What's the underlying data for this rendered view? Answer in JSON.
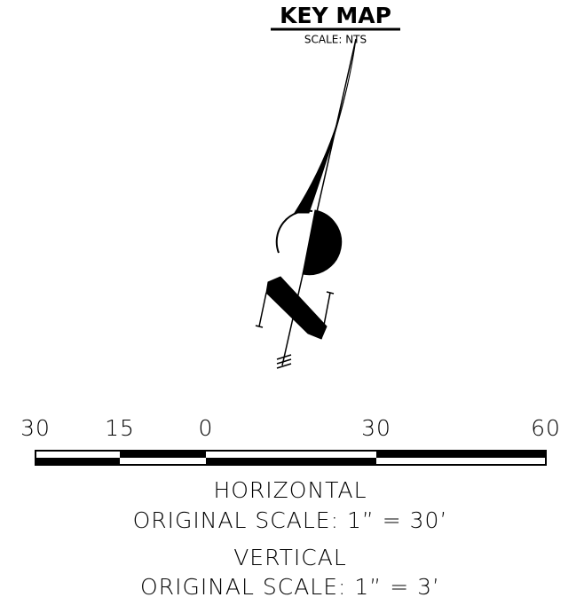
{
  "header": {
    "title": "KEY MAP",
    "subtitle": "SCALE: NTS"
  },
  "scale_bar": {
    "labels": [
      "30",
      "15",
      "0",
      "30",
      "60"
    ]
  },
  "notes": {
    "horizontal_title": "HORIZONTAL",
    "horizontal_scale": "ORIGINAL SCALE: 1” = 30’",
    "vertical_title": "VERTICAL",
    "vertical_scale": "ORIGINAL SCALE: 1” = 3’"
  }
}
